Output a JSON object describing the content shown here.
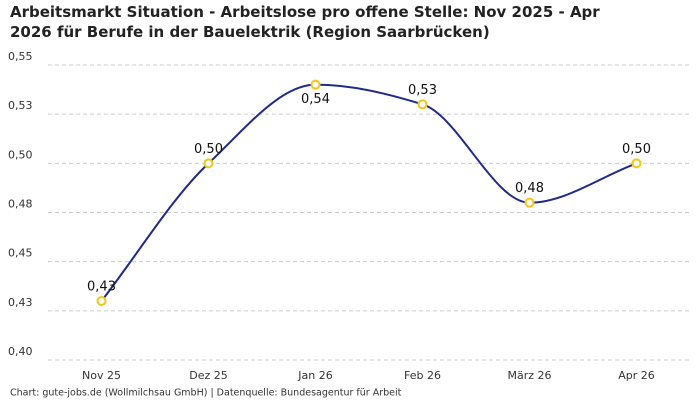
{
  "chart_data": {
    "type": "line",
    "title": "Arbeitsmarkt Situation - Arbeitslose pro offene Stelle: Nov 2025 - Apr 2026 für Berufe in der Bauelektrik (Region Saarbrücken)",
    "source": "Chart: gute-jobs.de (Wollmilchsau GmbH) | Datenquelle: Bundesagentur für Arbeit",
    "categories": [
      "Nov 25",
      "Dez 25",
      "Jan 26",
      "Feb 26",
      "März 26",
      "Apr 26"
    ],
    "series": [
      {
        "name": "Arbeitslose pro offene Stelle",
        "color": "#1f2a8a",
        "marker_color": "#f5c518",
        "values": [
          0.43,
          0.5,
          0.54,
          0.53,
          0.48,
          0.5
        ],
        "value_labels": [
          "0,43",
          "0,50",
          "0,54",
          "0,53",
          "0,48",
          "0,50"
        ]
      }
    ],
    "ylim": [
      0.4,
      0.55
    ],
    "yticks": [
      {
        "value": 0.4,
        "label": "0,40"
      },
      {
        "value": 0.425,
        "label": "0,43"
      },
      {
        "value": 0.45,
        "label": "0,45"
      },
      {
        "value": 0.475,
        "label": "0,48"
      },
      {
        "value": 0.5,
        "label": "0,50"
      },
      {
        "value": 0.525,
        "label": "0,53"
      },
      {
        "value": 0.55,
        "label": "0,55"
      }
    ],
    "grid": true
  }
}
